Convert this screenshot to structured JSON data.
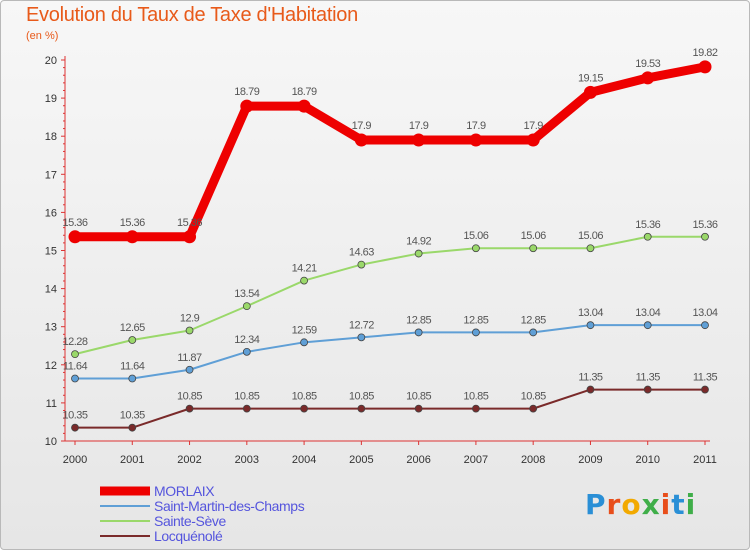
{
  "header": {
    "title": "Evolution du Taux de Taxe d'Habitation",
    "subtitle": "(en %)"
  },
  "logo": {
    "text": "Proxiti",
    "letters": [
      "P",
      "r",
      "o",
      "x",
      "i",
      "t",
      "i"
    ],
    "colors": [
      "#2a8fd6",
      "#e84e1b",
      "#f2a900",
      "#3fae49",
      "#e84e1b",
      "#2a8fd6",
      "#3fae49"
    ]
  },
  "chart_data": {
    "type": "line",
    "title": "Evolution du Taux de Taxe d'Habitation",
    "ylabel": "(en %)",
    "xlabel": "",
    "x": [
      "2000",
      "2001",
      "2002",
      "2003",
      "2004",
      "2005",
      "2006",
      "2007",
      "2008",
      "2009",
      "2010",
      "2011"
    ],
    "ylim": [
      10,
      20
    ],
    "yticks": [
      "10",
      "11",
      "12",
      "13",
      "14",
      "15",
      "16",
      "17",
      "18",
      "19",
      "20"
    ],
    "grid": false,
    "legend": "bottom-left",
    "series": [
      {
        "name": "MORLAIX",
        "color": "#ee0000",
        "values": [
          15.36,
          15.36,
          15.36,
          18.79,
          18.79,
          17.9,
          17.9,
          17.9,
          17.9,
          19.15,
          19.53,
          19.82
        ],
        "labels": [
          "15.36",
          "15.36",
          "15.36",
          "18.79",
          "18.79",
          "17.9",
          "17.9",
          "17.9",
          "17.9",
          "19.15",
          "19.53",
          "19.82"
        ]
      },
      {
        "name": "Saint-Martin-des-Champs",
        "color": "#5f9fd6",
        "values": [
          11.64,
          11.64,
          11.87,
          12.34,
          12.59,
          12.72,
          12.85,
          12.85,
          12.85,
          13.04,
          13.04,
          13.04
        ],
        "labels": [
          "11.64",
          "11.64",
          "11.87",
          "12.34",
          "12.59",
          "12.72",
          "12.85",
          "12.85",
          "12.85",
          "13.04",
          "13.04",
          "13.04"
        ]
      },
      {
        "name": "Sainte-Sève",
        "color": "#9ad86a",
        "values": [
          12.28,
          12.65,
          12.9,
          13.54,
          14.21,
          14.63,
          14.92,
          15.06,
          15.06,
          15.06,
          15.36,
          15.36
        ],
        "labels": [
          "12.28",
          "12.65",
          "12.9",
          "13.54",
          "14.21",
          "14.63",
          "14.92",
          "15.06",
          "15.06",
          "15.06",
          "15.36",
          "15.36"
        ]
      },
      {
        "name": "Locquénolé",
        "color": "#7a2a2a",
        "values": [
          10.35,
          10.35,
          10.85,
          10.85,
          10.85,
          10.85,
          10.85,
          10.85,
          10.85,
          11.35,
          11.35,
          11.35
        ],
        "labels": [
          "10.35",
          "10.35",
          "10.85",
          "10.85",
          "10.85",
          "10.85",
          "10.85",
          "10.85",
          "10.85",
          "11.35",
          "11.35",
          "11.35"
        ]
      }
    ]
  }
}
